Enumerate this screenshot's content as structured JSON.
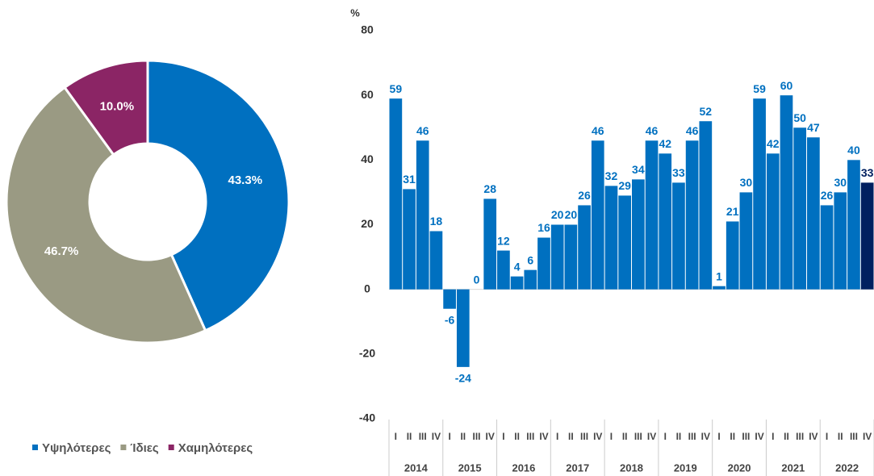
{
  "chart_data": [
    {
      "type": "pie",
      "categories": [
        "Υψηλότερες",
        "Ίδιες",
        "Χαμηλότερες"
      ],
      "values": [
        43.3,
        46.7,
        10.0
      ],
      "value_labels": [
        "43.3%",
        "46.7%",
        "10.0%"
      ],
      "colors": [
        "#0070c0",
        "#9a9a83",
        "#8b2565"
      ],
      "legend": "bottom"
    },
    {
      "type": "bar",
      "y_label": "%",
      "groups": [
        "2014",
        "2015",
        "2016",
        "2017",
        "2018",
        "2019",
        "2020",
        "2021",
        "2022"
      ],
      "categories": [
        "I",
        "II",
        "III",
        "IV",
        "I",
        "II",
        "III",
        "IV",
        "I",
        "II",
        "III",
        "IV",
        "I",
        "II",
        "III",
        "IV",
        "I",
        "II",
        "III",
        "IV",
        "I",
        "II",
        "III",
        "IV",
        "I",
        "II",
        "III",
        "IV",
        "I",
        "II",
        "III",
        "IV",
        "I",
        "II",
        "III",
        "IV"
      ],
      "values": [
        59,
        31,
        46,
        18,
        -6,
        -24,
        0,
        28,
        12,
        4,
        6,
        16,
        20,
        20,
        26,
        46,
        32,
        29,
        34,
        46,
        42,
        33,
        46,
        52,
        1,
        21,
        30,
        59,
        42,
        60,
        50,
        47,
        26,
        30,
        40,
        33
      ],
      "colors": [
        "#0070c0",
        "#0070c0",
        "#0070c0",
        "#0070c0",
        "#0070c0",
        "#0070c0",
        "#0070c0",
        "#0070c0",
        "#0070c0",
        "#0070c0",
        "#0070c0",
        "#0070c0",
        "#0070c0",
        "#0070c0",
        "#0070c0",
        "#0070c0",
        "#0070c0",
        "#0070c0",
        "#0070c0",
        "#0070c0",
        "#0070c0",
        "#0070c0",
        "#0070c0",
        "#0070c0",
        "#0070c0",
        "#0070c0",
        "#0070c0",
        "#0070c0",
        "#0070c0",
        "#0070c0",
        "#0070c0",
        "#0070c0",
        "#0070c0",
        "#0070c0",
        "#0070c0",
        "#002060"
      ],
      "ylim": [
        -40,
        80
      ],
      "yticks": [
        -40,
        -20,
        0,
        20,
        40,
        60,
        80
      ]
    }
  ]
}
